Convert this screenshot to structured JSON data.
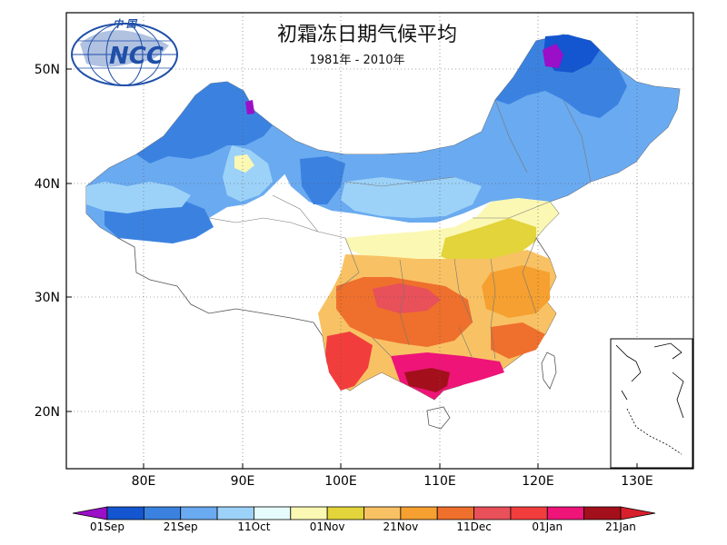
{
  "title": "初霜冻日期气候平均",
  "subtitle": "1981年 - 2010年",
  "logo": {
    "org": "NCC",
    "top_text": "中 国"
  },
  "axes": {
    "x_ticks": [
      "80E",
      "90E",
      "100E",
      "110E",
      "120E",
      "130E"
    ],
    "y_ticks": [
      "50N",
      "40N",
      "30N",
      "20N"
    ]
  },
  "colorbar": {
    "labels": [
      "01Sep",
      "21Sep",
      "11Oct",
      "01Nov",
      "21Nov",
      "11Dec",
      "01Jan",
      "21Jan"
    ],
    "colors": [
      "#9b0fc8",
      "#1456d0",
      "#3b82e0",
      "#6aaaf0",
      "#9dd2f8",
      "#e6fbfb",
      "#fbf8b4",
      "#e2d43a",
      "#f8c264",
      "#f5a030",
      "#ef6f2c",
      "#e8505a",
      "#f23d3d",
      "#ee1478",
      "#a3101c",
      "#d8202c"
    ]
  },
  "legend_items": [
    {
      "label": "01Sep",
      "color": "#1456d0"
    },
    {
      "label": "21Sep",
      "color": "#6aaaf0"
    },
    {
      "label": "11Oct",
      "color": "#e6fbfb"
    },
    {
      "label": "01Nov",
      "color": "#e2d43a"
    },
    {
      "label": "21Nov",
      "color": "#f5a030"
    },
    {
      "label": "11Dec",
      "color": "#e8505a"
    },
    {
      "label": "01Jan",
      "color": "#ee1478"
    },
    {
      "label": "21Jan",
      "color": "#a3101c"
    }
  ]
}
